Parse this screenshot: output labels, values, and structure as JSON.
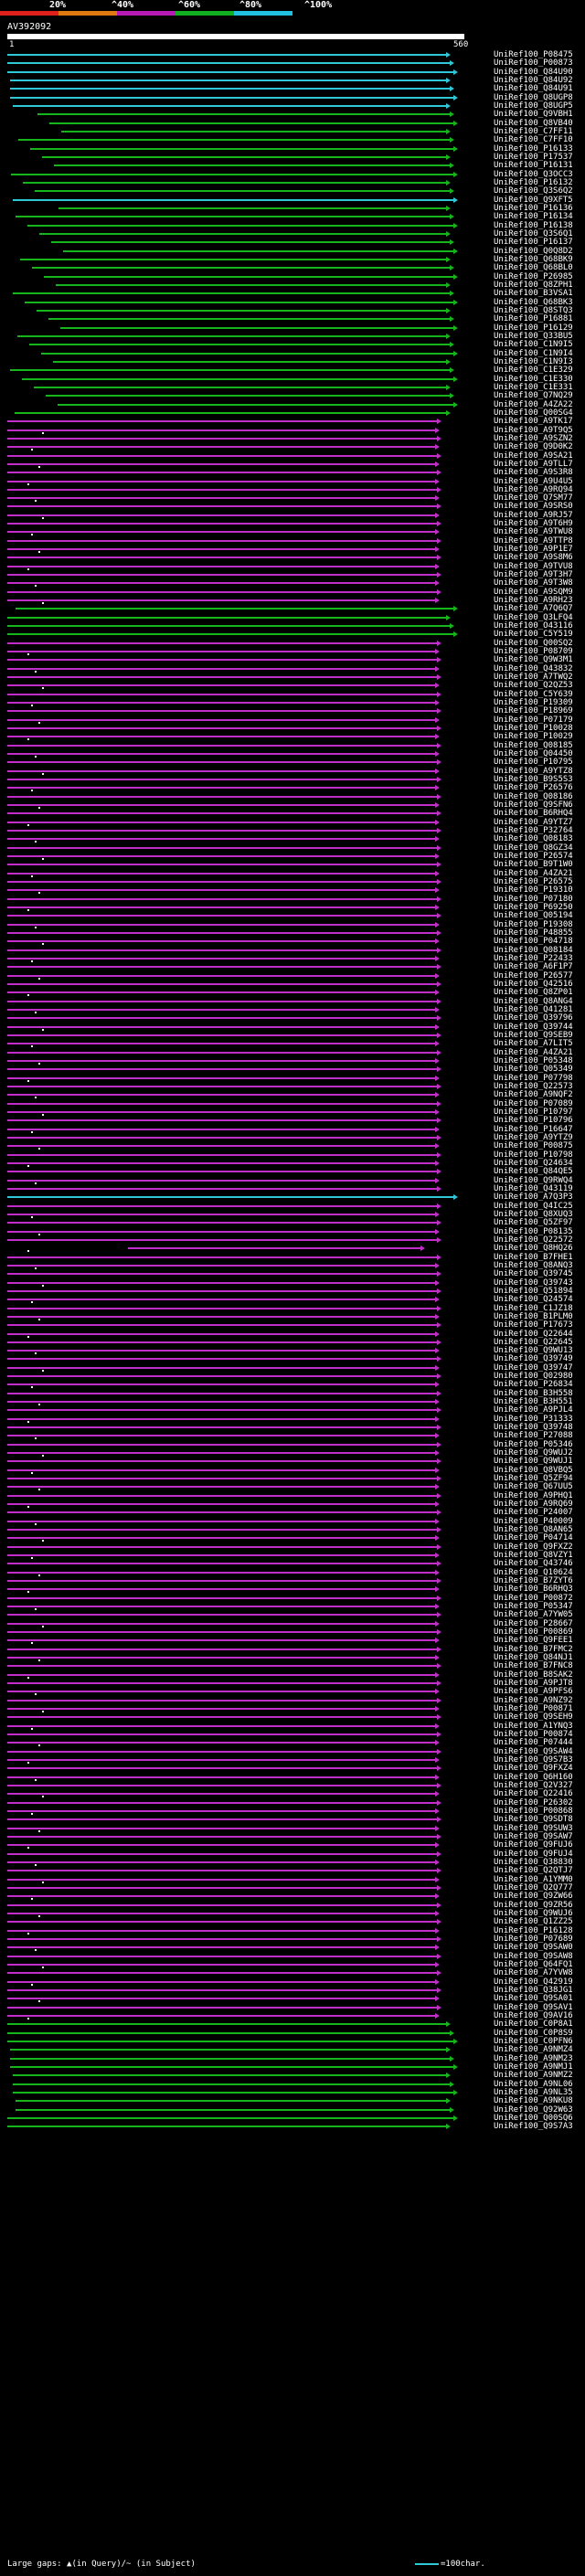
{
  "scale": {
    "labels": [
      "20%",
      "^40%",
      "^60%",
      "^80%",
      "^100%"
    ],
    "colors": {
      "c20": "#e0201c",
      "c40": "#e07a10",
      "c60": "#b81ab8",
      "c80": "#10b020",
      "c100": "#20c0e0"
    }
  },
  "query": {
    "name": "AV392092",
    "start": "1",
    "end": "560"
  },
  "legend": {
    "left": "Large gaps: ▲(in Query)/~ (in Subject)",
    "right": "=100char."
  },
  "hits": [
    {
      "id": "UniRef100_P08475",
      "cls": "c"
    },
    {
      "id": "UniRef100_P00873",
      "cls": "c"
    },
    {
      "id": "UniRef100_Q84U90",
      "cls": "c"
    },
    {
      "id": "UniRef100_Q84U92",
      "cls": "c"
    },
    {
      "id": "UniRef100_Q84U91",
      "cls": "c"
    },
    {
      "id": "UniRef100_Q8UGP8",
      "cls": "c"
    },
    {
      "id": "UniRef100_Q8UGP5",
      "cls": "c"
    },
    {
      "id": "UniRef100_Q9VBH1",
      "cls": "g"
    },
    {
      "id": "UniRef100_Q8VB40",
      "cls": "g"
    },
    {
      "id": "UniRef100_C7FF11",
      "cls": "g"
    },
    {
      "id": "UniRef100_C7FF10",
      "cls": "g"
    },
    {
      "id": "UniRef100_P16133",
      "cls": "g"
    },
    {
      "id": "UniRef100_P17537",
      "cls": "g"
    },
    {
      "id": "UniRef100_P16131",
      "cls": "g"
    },
    {
      "id": "UniRef100_Q3OCC3",
      "cls": "g"
    },
    {
      "id": "UniRef100_P16132",
      "cls": "g"
    },
    {
      "id": "UniRef100_Q3S6Q2",
      "cls": "g"
    },
    {
      "id": "UniRef100_Q9XFT5",
      "cls": "c"
    },
    {
      "id": "UniRef100_P16136",
      "cls": "g"
    },
    {
      "id": "UniRef100_P16134",
      "cls": "g"
    },
    {
      "id": "UniRef100_P16138",
      "cls": "g"
    },
    {
      "id": "UniRef100_Q3S6Q1",
      "cls": "g"
    },
    {
      "id": "UniRef100_P16137",
      "cls": "g"
    },
    {
      "id": "UniRef100_Q0Q8D2",
      "cls": "g"
    },
    {
      "id": "UniRef100_Q68BK9",
      "cls": "g"
    },
    {
      "id": "UniRef100_Q68BL0",
      "cls": "g"
    },
    {
      "id": "UniRef100_P26985",
      "cls": "g"
    },
    {
      "id": "UniRef100_Q8ZPH1",
      "cls": "g"
    },
    {
      "id": "UniRef100_B3VSA1",
      "cls": "g"
    },
    {
      "id": "UniRef100_Q68BK3",
      "cls": "g"
    },
    {
      "id": "UniRef100_Q8STQ3",
      "cls": "g"
    },
    {
      "id": "UniRef100_P16881",
      "cls": "g"
    },
    {
      "id": "UniRef100_P16129",
      "cls": "g"
    },
    {
      "id": "UniRef100_Q33BU5",
      "cls": "g"
    },
    {
      "id": "UniRef100_C1N9I5",
      "cls": "g"
    },
    {
      "id": "UniRef100_C1N9I4",
      "cls": "g"
    },
    {
      "id": "UniRef100_C1N9I3",
      "cls": "g"
    },
    {
      "id": "UniRef100_C1E329",
      "cls": "g"
    },
    {
      "id": "UniRef100_C1E330",
      "cls": "g"
    },
    {
      "id": "UniRef100_C1E331",
      "cls": "g"
    },
    {
      "id": "UniRef100_Q7NQ29",
      "cls": "g"
    },
    {
      "id": "UniRef100_A4ZA22",
      "cls": "g"
    },
    {
      "id": "UniRef100_Q00SG4",
      "cls": "g"
    },
    {
      "id": "UniRef100_A9TK17",
      "cls": "m"
    },
    {
      "id": "UniRef100_A9T9Q5",
      "cls": "m"
    },
    {
      "id": "UniRef100_A9SZN2",
      "cls": "m"
    },
    {
      "id": "UniRef100_Q9D0K2",
      "cls": "m"
    },
    {
      "id": "UniRef100_A9SA21",
      "cls": "m"
    },
    {
      "id": "UniRef100_A9TLL7",
      "cls": "m"
    },
    {
      "id": "UniRef100_A9S3R8",
      "cls": "m"
    },
    {
      "id": "UniRef100_A9U4U5",
      "cls": "m"
    },
    {
      "id": "UniRef100_A9RQ94",
      "cls": "m"
    },
    {
      "id": "UniRef100_Q7SM77",
      "cls": "m"
    },
    {
      "id": "UniRef100_A9SRS0",
      "cls": "m"
    },
    {
      "id": "UniRef100_A9RJ57",
      "cls": "m"
    },
    {
      "id": "UniRef100_A9T6H9",
      "cls": "m"
    },
    {
      "id": "UniRef100_A9TWU8",
      "cls": "m"
    },
    {
      "id": "UniRef100_A9TTP8",
      "cls": "m"
    },
    {
      "id": "UniRef100_A9P1E7",
      "cls": "m"
    },
    {
      "id": "UniRef100_A9S8M6",
      "cls": "m"
    },
    {
      "id": "UniRef100_A9TVU8",
      "cls": "m"
    },
    {
      "id": "UniRef100_A9T3H7",
      "cls": "m"
    },
    {
      "id": "UniRef100_A9T3W8",
      "cls": "m"
    },
    {
      "id": "UniRef100_A9SQM9",
      "cls": "m"
    },
    {
      "id": "UniRef100_A9RH23",
      "cls": "m"
    },
    {
      "id": "UniRef100_A7Q6Q7",
      "cls": "g"
    },
    {
      "id": "UniRef100_Q3LFQ4",
      "cls": "g"
    },
    {
      "id": "UniRef100_O43116",
      "cls": "g"
    },
    {
      "id": "UniRef100_C5Y519",
      "cls": "g"
    },
    {
      "id": "UniRef100_Q00SQ2",
      "cls": "m"
    },
    {
      "id": "UniRef100_P08709",
      "cls": "m"
    },
    {
      "id": "UniRef100_Q9W3M1",
      "cls": "m"
    },
    {
      "id": "UniRef100_Q43832",
      "cls": "m"
    },
    {
      "id": "UniRef100_A7TWQ2",
      "cls": "m"
    },
    {
      "id": "UniRef100_Q2QZ53",
      "cls": "m"
    },
    {
      "id": "UniRef100_C5Y639",
      "cls": "m"
    },
    {
      "id": "UniRef100_P19309",
      "cls": "m"
    },
    {
      "id": "UniRef100_P18969",
      "cls": "m"
    },
    {
      "id": "UniRef100_P07179",
      "cls": "m"
    },
    {
      "id": "UniRef100_P10028",
      "cls": "m"
    },
    {
      "id": "UniRef100_P10029",
      "cls": "m"
    },
    {
      "id": "UniRef100_Q08185",
      "cls": "m"
    },
    {
      "id": "UniRef100_Q04450",
      "cls": "m"
    },
    {
      "id": "UniRef100_P10795",
      "cls": "m"
    },
    {
      "id": "UniRef100_A9YTZ8",
      "cls": "m"
    },
    {
      "id": "UniRef100_B9S5S3",
      "cls": "m"
    },
    {
      "id": "UniRef100_P26576",
      "cls": "m"
    },
    {
      "id": "UniRef100_Q08186",
      "cls": "m"
    },
    {
      "id": "UniRef100_Q9SFN6",
      "cls": "m"
    },
    {
      "id": "UniRef100_B6RHQ4",
      "cls": "m"
    },
    {
      "id": "UniRef100_A9YTZ7",
      "cls": "m"
    },
    {
      "id": "UniRef100_P32764",
      "cls": "m"
    },
    {
      "id": "UniRef100_Q08183",
      "cls": "m"
    },
    {
      "id": "UniRef100_Q8GZ34",
      "cls": "m"
    },
    {
      "id": "UniRef100_P26574",
      "cls": "m"
    },
    {
      "id": "UniRef100_B9T1W0",
      "cls": "m"
    },
    {
      "id": "UniRef100_A4ZA21",
      "cls": "m"
    },
    {
      "id": "UniRef100_P26575",
      "cls": "m"
    },
    {
      "id": "UniRef100_P19310",
      "cls": "m"
    },
    {
      "id": "UniRef100_P07180",
      "cls": "m"
    },
    {
      "id": "UniRef100_P69250",
      "cls": "m"
    },
    {
      "id": "UniRef100_Q05194",
      "cls": "m"
    },
    {
      "id": "UniRef100_P19308",
      "cls": "m"
    },
    {
      "id": "UniRef100_P48855",
      "cls": "m"
    },
    {
      "id": "UniRef100_P04718",
      "cls": "m"
    },
    {
      "id": "UniRef100_Q08184",
      "cls": "m"
    },
    {
      "id": "UniRef100_P22433",
      "cls": "m"
    },
    {
      "id": "UniRef100_A6F1P7",
      "cls": "m"
    },
    {
      "id": "UniRef100_P26577",
      "cls": "m"
    },
    {
      "id": "UniRef100_Q42516",
      "cls": "m"
    },
    {
      "id": "UniRef100_Q8ZP01",
      "cls": "m"
    },
    {
      "id": "UniRef100_Q8ANG4",
      "cls": "m"
    },
    {
      "id": "UniRef100_Q41281",
      "cls": "m"
    },
    {
      "id": "UniRef100_Q39796",
      "cls": "m"
    },
    {
      "id": "UniRef100_Q39744",
      "cls": "m"
    },
    {
      "id": "UniRef100_Q9SEB9",
      "cls": "m"
    },
    {
      "id": "UniRef100_A7LIT5",
      "cls": "m"
    },
    {
      "id": "UniRef100_A4ZA21",
      "cls": "m"
    },
    {
      "id": "UniRef100_P05348",
      "cls": "m"
    },
    {
      "id": "UniRef100_Q05349",
      "cls": "m"
    },
    {
      "id": "UniRef100_P07798",
      "cls": "m"
    },
    {
      "id": "UniRef100_Q22573",
      "cls": "m"
    },
    {
      "id": "UniRef100_A9NQF2",
      "cls": "m"
    },
    {
      "id": "UniRef100_P07089",
      "cls": "m"
    },
    {
      "id": "UniRef100_P10797",
      "cls": "m"
    },
    {
      "id": "UniRef100_P10796",
      "cls": "m"
    },
    {
      "id": "UniRef100_P16647",
      "cls": "m"
    },
    {
      "id": "UniRef100_A9YTZ9",
      "cls": "m"
    },
    {
      "id": "UniRef100_P00875",
      "cls": "m"
    },
    {
      "id": "UniRef100_P10798",
      "cls": "m"
    },
    {
      "id": "UniRef100_Q24634",
      "cls": "m"
    },
    {
      "id": "UniRef100_Q84QE5",
      "cls": "m"
    },
    {
      "id": "UniRef100_Q9RWQ4",
      "cls": "m"
    },
    {
      "id": "UniRef100_Q43119",
      "cls": "m"
    },
    {
      "id": "UniRef100_A7Q3P3",
      "cls": "c"
    },
    {
      "id": "UniRef100_Q4IC25",
      "cls": "m"
    },
    {
      "id": "UniRef100_Q8XUQ3",
      "cls": "m"
    },
    {
      "id": "UniRef100_Q5ZF97",
      "cls": "m"
    },
    {
      "id": "UniRef100_P08135",
      "cls": "m"
    },
    {
      "id": "UniRef100_Q22572",
      "cls": "m"
    },
    {
      "id": "UniRef100_Q8HQ26",
      "cls": "m"
    },
    {
      "id": "UniRef100_B7FHE1",
      "cls": "m"
    },
    {
      "id": "UniRef100_Q8ANQ3",
      "cls": "m"
    },
    {
      "id": "UniRef100_Q39745",
      "cls": "m"
    },
    {
      "id": "UniRef100_Q39743",
      "cls": "m"
    },
    {
      "id": "UniRef100_Q51894",
      "cls": "m"
    },
    {
      "id": "UniRef100_Q24574",
      "cls": "m"
    },
    {
      "id": "UniRef100_C1JZ18",
      "cls": "m"
    },
    {
      "id": "UniRef100_B1PLM0",
      "cls": "m"
    },
    {
      "id": "UniRef100_P17673",
      "cls": "m"
    },
    {
      "id": "UniRef100_Q22644",
      "cls": "m"
    },
    {
      "id": "UniRef100_Q22645",
      "cls": "m"
    },
    {
      "id": "UniRef100_Q9WU13",
      "cls": "m"
    },
    {
      "id": "UniRef100_Q39749",
      "cls": "m"
    },
    {
      "id": "UniRef100_Q39747",
      "cls": "m"
    },
    {
      "id": "UniRef100_Q02980",
      "cls": "m"
    },
    {
      "id": "UniRef100_P26834",
      "cls": "m"
    },
    {
      "id": "UniRef100_B3H558",
      "cls": "m"
    },
    {
      "id": "UniRef100_B3H551",
      "cls": "m"
    },
    {
      "id": "UniRef100_A9PJL4",
      "cls": "m"
    },
    {
      "id": "UniRef100_P31333",
      "cls": "m"
    },
    {
      "id": "UniRef100_Q39748",
      "cls": "m"
    },
    {
      "id": "UniRef100_P27088",
      "cls": "m"
    },
    {
      "id": "UniRef100_P05346",
      "cls": "m"
    },
    {
      "id": "UniRef100_Q9WUJ2",
      "cls": "m"
    },
    {
      "id": "UniRef100_Q9WUJ1",
      "cls": "m"
    },
    {
      "id": "UniRef100_Q8VBQ5",
      "cls": "m"
    },
    {
      "id": "UniRef100_Q5ZF94",
      "cls": "m"
    },
    {
      "id": "UniRef100_Q67UU5",
      "cls": "m"
    },
    {
      "id": "UniRef100_A9PHQ1",
      "cls": "m"
    },
    {
      "id": "UniRef100_A9RQ69",
      "cls": "m"
    },
    {
      "id": "UniRef100_P24007",
      "cls": "m"
    },
    {
      "id": "UniRef100_P40009",
      "cls": "m"
    },
    {
      "id": "UniRef100_Q8AN65",
      "cls": "m"
    },
    {
      "id": "UniRef100_P04714",
      "cls": "m"
    },
    {
      "id": "UniRef100_Q9FXZ2",
      "cls": "m"
    },
    {
      "id": "UniRef100_Q8VZY1",
      "cls": "m"
    },
    {
      "id": "UniRef100_Q43746",
      "cls": "m"
    },
    {
      "id": "UniRef100_Q10624",
      "cls": "m"
    },
    {
      "id": "UniRef100_B7ZYT6",
      "cls": "m"
    },
    {
      "id": "UniRef100_B6RHQ3",
      "cls": "m"
    },
    {
      "id": "UniRef100_P00872",
      "cls": "m"
    },
    {
      "id": "UniRef100_P05347",
      "cls": "m"
    },
    {
      "id": "UniRef100_A7YW05",
      "cls": "m"
    },
    {
      "id": "UniRef100_P28667",
      "cls": "m"
    },
    {
      "id": "UniRef100_P00869",
      "cls": "m"
    },
    {
      "id": "UniRef100_Q9FEE1",
      "cls": "m"
    },
    {
      "id": "UniRef100_B7FMC2",
      "cls": "m"
    },
    {
      "id": "UniRef100_Q84NJ1",
      "cls": "m"
    },
    {
      "id": "UniRef100_B7FNC8",
      "cls": "m"
    },
    {
      "id": "UniRef100_B8SAK2",
      "cls": "m"
    },
    {
      "id": "UniRef100_A9PJT8",
      "cls": "m"
    },
    {
      "id": "UniRef100_A9PFS6",
      "cls": "m"
    },
    {
      "id": "UniRef100_A9NZ92",
      "cls": "m"
    },
    {
      "id": "UniRef100_P00871",
      "cls": "m"
    },
    {
      "id": "UniRef100_Q9SEH9",
      "cls": "m"
    },
    {
      "id": "UniRef100_A1YNQ3",
      "cls": "m"
    },
    {
      "id": "UniRef100_P00874",
      "cls": "m"
    },
    {
      "id": "UniRef100_P07444",
      "cls": "m"
    },
    {
      "id": "UniRef100_Q9SAW4",
      "cls": "m"
    },
    {
      "id": "UniRef100_Q9S7B3",
      "cls": "m"
    },
    {
      "id": "UniRef100_Q9FXZ4",
      "cls": "m"
    },
    {
      "id": "UniRef100_Q6H160",
      "cls": "m"
    },
    {
      "id": "UniRef100_Q2V327",
      "cls": "m"
    },
    {
      "id": "UniRef100_Q22416",
      "cls": "m"
    },
    {
      "id": "UniRef100_P26302",
      "cls": "m"
    },
    {
      "id": "UniRef100_P00868",
      "cls": "m"
    },
    {
      "id": "UniRef100_Q9SDT8",
      "cls": "m"
    },
    {
      "id": "UniRef100_Q9SUW3",
      "cls": "m"
    },
    {
      "id": "UniRef100_Q9SAW7",
      "cls": "m"
    },
    {
      "id": "UniRef100_Q9FUJ6",
      "cls": "m"
    },
    {
      "id": "UniRef100_Q9FUJ4",
      "cls": "m"
    },
    {
      "id": "UniRef100_Q38830",
      "cls": "m"
    },
    {
      "id": "UniRef100_Q2QTJ7",
      "cls": "m"
    },
    {
      "id": "UniRef100_A1YMM0",
      "cls": "m"
    },
    {
      "id": "UniRef100_Q2Q777",
      "cls": "m"
    },
    {
      "id": "UniRef100_Q9ZW66",
      "cls": "m"
    },
    {
      "id": "UniRef100_Q9ZR56",
      "cls": "m"
    },
    {
      "id": "UniRef100_Q9WUJ6",
      "cls": "m"
    },
    {
      "id": "UniRef100_Q1ZZ25",
      "cls": "m"
    },
    {
      "id": "UniRef100_P16128",
      "cls": "m"
    },
    {
      "id": "UniRef100_P07689",
      "cls": "m"
    },
    {
      "id": "UniRef100_Q9SAW0",
      "cls": "m"
    },
    {
      "id": "UniRef100_Q9SAW8",
      "cls": "m"
    },
    {
      "id": "UniRef100_Q64FQ1",
      "cls": "m"
    },
    {
      "id": "UniRef100_A7YVW8",
      "cls": "m"
    },
    {
      "id": "UniRef100_Q42919",
      "cls": "m"
    },
    {
      "id": "UniRef100_Q38JG1",
      "cls": "m"
    },
    {
      "id": "UniRef100_Q9SA01",
      "cls": "m"
    },
    {
      "id": "UniRef100_Q9SAV1",
      "cls": "m"
    },
    {
      "id": "UniRef100_Q9AV16",
      "cls": "m"
    },
    {
      "id": "UniRef100_C0P8A1",
      "cls": "g"
    },
    {
      "id": "UniRef100_C0P8S9",
      "cls": "g"
    },
    {
      "id": "UniRef100_C0PFN6",
      "cls": "g"
    },
    {
      "id": "UniRef100_A9NMZ4",
      "cls": "g"
    },
    {
      "id": "UniRef100_A9NM23",
      "cls": "g"
    },
    {
      "id": "UniRef100_A9NMJ1",
      "cls": "g"
    },
    {
      "id": "UniRef100_A9NMZ2",
      "cls": "g"
    },
    {
      "id": "UniRef100_A9NL06",
      "cls": "g"
    },
    {
      "id": "UniRef100_A9NL35",
      "cls": "g"
    },
    {
      "id": "UniRef100_A9NKU8",
      "cls": "g"
    },
    {
      "id": "UniRef100_Q92W63",
      "cls": "g"
    },
    {
      "id": "UniRef100_Q00SQ6",
      "cls": "g"
    },
    {
      "id": "UniRef100_Q9S7A3",
      "cls": "g"
    }
  ]
}
